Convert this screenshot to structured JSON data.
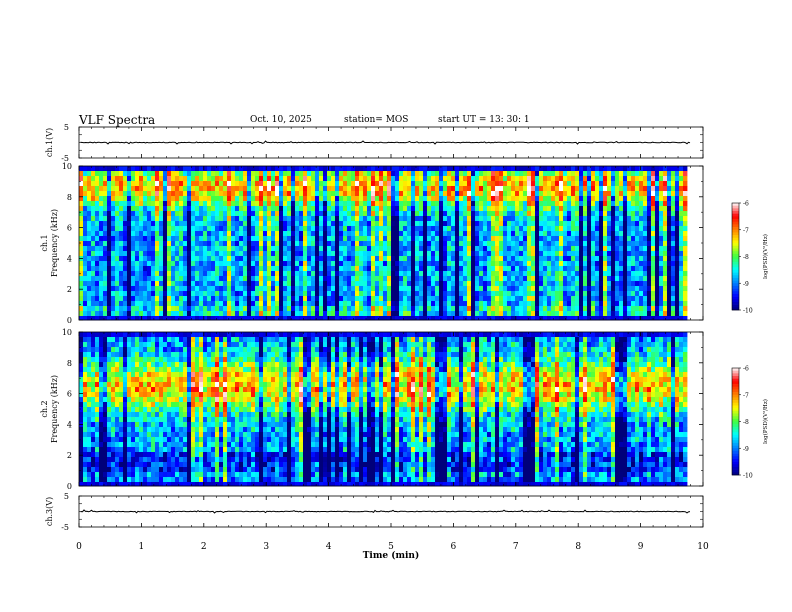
{
  "header": {
    "title": "VLF Spectra",
    "date": "Oct. 10, 2025",
    "station": "station= MOS",
    "start_ut": "start  UT  =   13: 30: 1"
  },
  "chart_data": [
    {
      "type": "line",
      "panel": "ch1-waveform",
      "ylabel": "ch.1(V)",
      "ylim": [
        -5,
        5
      ],
      "y_tick_labels": [
        "5",
        "-5"
      ],
      "trace_level": 0,
      "xlim": [
        0,
        10
      ],
      "data_end_min": 9.8
    },
    {
      "type": "heatmap",
      "panel": "ch1-spectrogram",
      "ylabel_lines": [
        "ch.1",
        "Frequency  (kHz)"
      ],
      "ylim": [
        0,
        10
      ],
      "y_ticks": [
        0,
        2,
        4,
        6,
        8,
        10
      ],
      "xlim": [
        0,
        10
      ],
      "data_end_min": 9.8,
      "dominant_band_khz": [
        8.0,
        9.2
      ],
      "colorbar": {
        "label": "log(PSD)(V²/Hz)",
        "range": [
          -10,
          -6
        ],
        "ticks": [
          "-6",
          "-7",
          "-8",
          "-9",
          "-10"
        ]
      }
    },
    {
      "type": "heatmap",
      "panel": "ch2-spectrogram",
      "ylabel_lines": [
        "ch.2",
        "Frequency  (kHz)"
      ],
      "ylim": [
        0,
        10
      ],
      "y_ticks": [
        0,
        2,
        4,
        6,
        8,
        10
      ],
      "xlim": [
        0,
        10
      ],
      "data_end_min": 9.8,
      "dominant_band_khz": [
        5.5,
        7.5
      ],
      "colorbar": {
        "label": "log(PSD)(V²/Hz)",
        "range": [
          -10,
          -6
        ],
        "ticks": [
          "-6",
          "-7",
          "-8",
          "-9",
          "-10"
        ]
      }
    },
    {
      "type": "line",
      "panel": "ch2-waveform",
      "ylabel": "ch.3(V)",
      "ylim": [
        -5,
        5
      ],
      "y_tick_labels": [
        "5",
        "-5"
      ],
      "trace_level": 0,
      "xlim": [
        0,
        10
      ],
      "data_end_min": 9.8,
      "xlabel": "Time  (min)",
      "x_ticks": [
        0,
        1,
        2,
        3,
        4,
        5,
        6,
        7,
        8,
        9,
        10
      ]
    }
  ],
  "colors": {
    "colormap": [
      "#00007a",
      "#0000ff",
      "#0080ff",
      "#00ffff",
      "#40ff40",
      "#ffff00",
      "#ff8000",
      "#ff0000",
      "#ffffff"
    ],
    "axes": "#000000"
  }
}
